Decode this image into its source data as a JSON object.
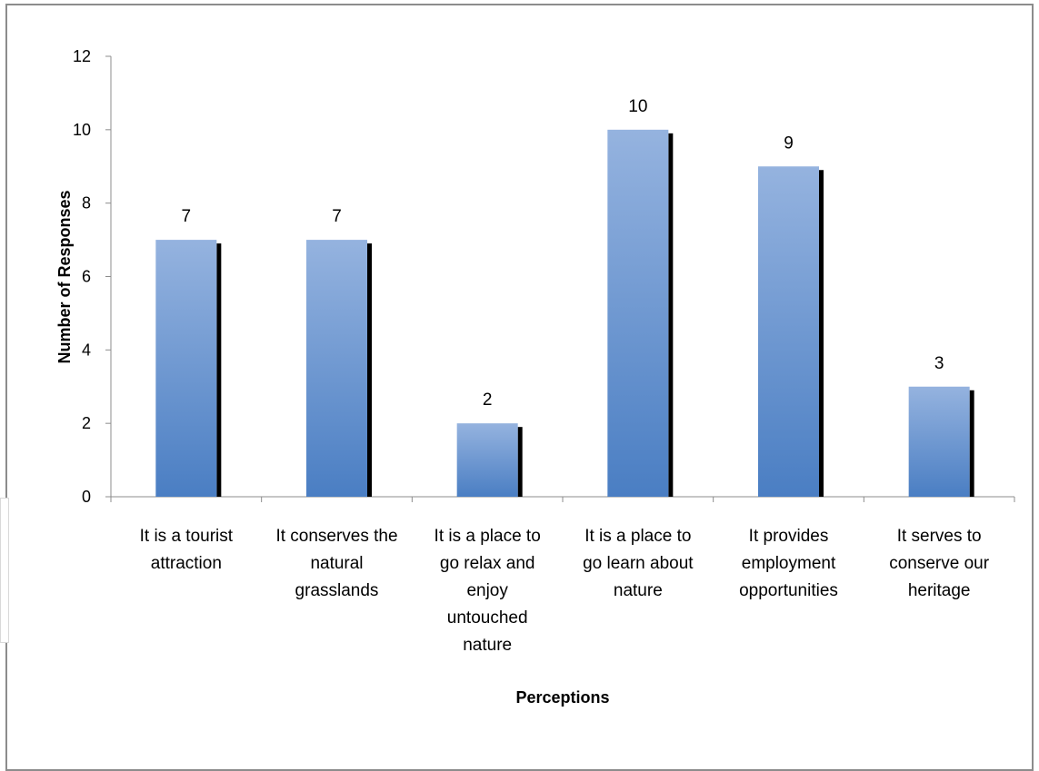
{
  "chart_data": {
    "type": "bar",
    "title": "",
    "xlabel": "Perceptions",
    "ylabel": "Number of Responses",
    "categories": [
      [
        "It is a tourist",
        "attraction"
      ],
      [
        "It conserves the",
        "natural",
        "grasslands"
      ],
      [
        "It is a place to",
        "go relax and",
        "enjoy",
        "untouched",
        "nature"
      ],
      [
        "It is a place to",
        "go learn about",
        "nature"
      ],
      [
        "It provides",
        "employment",
        "opportunities"
      ],
      [
        "It serves to",
        "conserve our",
        "heritage"
      ]
    ],
    "values": [
      7,
      7,
      2,
      10,
      9,
      3
    ],
    "data_labels": [
      "7",
      "7",
      "2",
      "10",
      "9",
      "3"
    ],
    "ylim": [
      0,
      12
    ],
    "yticks": [
      "0",
      "2",
      "4",
      "6",
      "8",
      "10",
      "12"
    ],
    "grid": false,
    "legend": "none",
    "colors": {
      "bar_top": "#95b3df",
      "bar_bottom": "#4a7ec3",
      "shadow": "#000000",
      "axis": "#8c8c8c"
    }
  }
}
